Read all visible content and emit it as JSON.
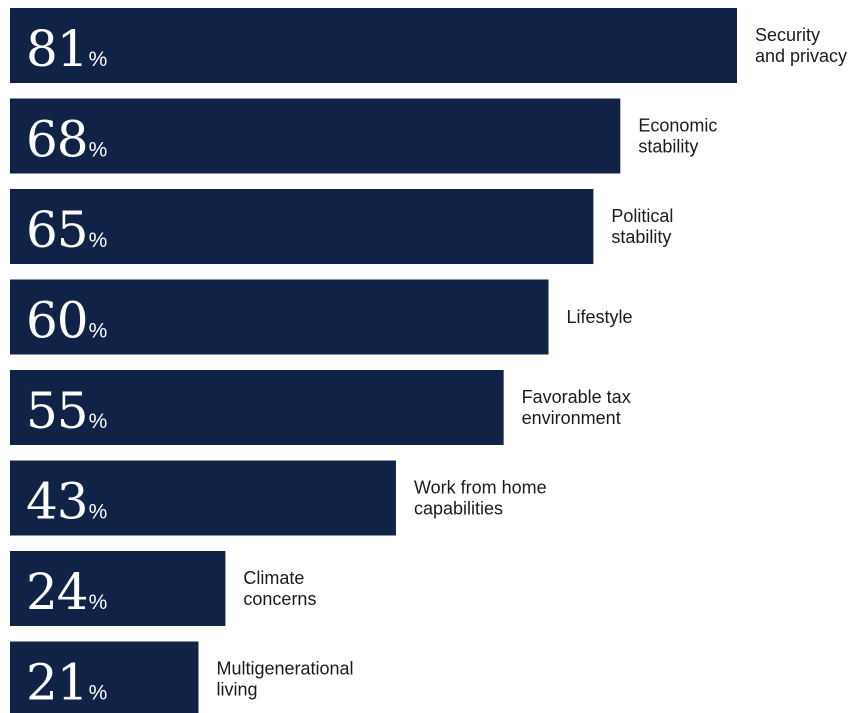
{
  "chart_data": {
    "type": "bar",
    "orientation": "horizontal",
    "categories": [
      "Security and privacy",
      "Economic stability",
      "Political stability",
      "Lifestyle",
      "Favorable tax environment",
      "Work from home capabilities",
      "Climate concerns",
      "Multigenerational living"
    ],
    "category_label_lines": [
      [
        "Security",
        "and privacy"
      ],
      [
        "Economic",
        "stability"
      ],
      [
        "Political",
        "stability"
      ],
      [
        "Lifestyle"
      ],
      [
        "Favorable tax",
        "environment"
      ],
      [
        "Work from home",
        "capabilities"
      ],
      [
        "Climate",
        "concerns"
      ],
      [
        "Multigenerational",
        "living"
      ]
    ],
    "values": [
      81,
      68,
      65,
      60,
      55,
      43,
      24,
      21
    ],
    "value_labels": [
      "81",
      "68",
      "65",
      "60",
      "55",
      "43",
      "24",
      "21"
    ],
    "unit": "%",
    "xlim": [
      0,
      100
    ],
    "grid": false,
    "legend": "none",
    "colors": {
      "bar": "#102246",
      "value_text": "#ffffff",
      "label_text": "#1b1b1b"
    }
  }
}
